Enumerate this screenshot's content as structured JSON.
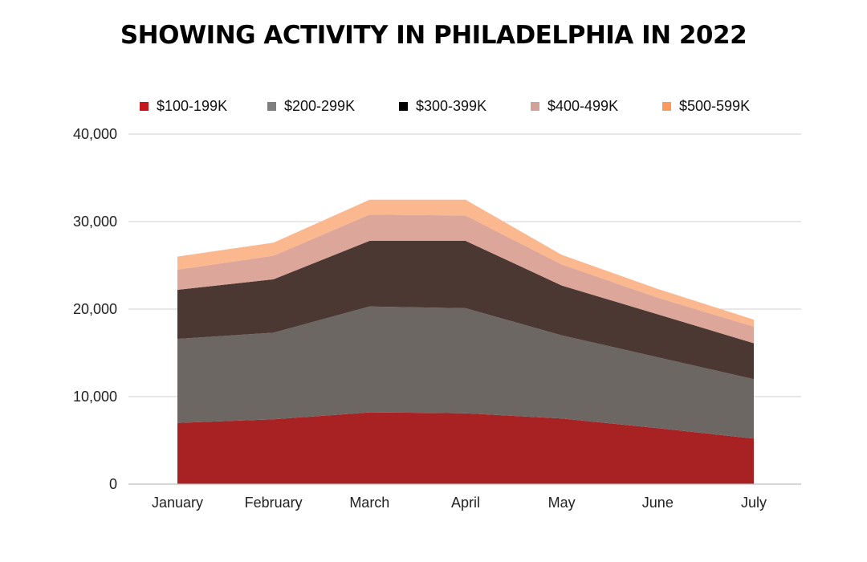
{
  "chart_data": {
    "type": "area",
    "stacked": true,
    "title": "SHOWING ACTIVITY IN PHILADELPHIA IN 2022",
    "categories": [
      "January",
      "February",
      "March",
      "April",
      "May",
      "June",
      "July"
    ],
    "y_ticks": [
      "0",
      "10,000",
      "20,000",
      "30,000",
      "40,000"
    ],
    "ylim": [
      0,
      40000
    ],
    "grid": true,
    "legend_position": "top",
    "series": [
      {
        "name": "$100-199K",
        "values": [
          7000,
          7400,
          8200,
          8100,
          7500,
          6400,
          5200
        ],
        "color": "#a82224",
        "swatch": "#c8161d"
      },
      {
        "name": "$200-299K",
        "values": [
          9600,
          9900,
          12100,
          12000,
          9500,
          8100,
          6800
        ],
        "color": "#6d6764",
        "swatch": "#7f7f7f"
      },
      {
        "name": "$300-399K",
        "values": [
          5600,
          6100,
          7500,
          7700,
          5700,
          4900,
          4100
        ],
        "color": "#4b3832",
        "swatch": "#000000"
      },
      {
        "name": "$400-499K",
        "values": [
          2300,
          2700,
          3000,
          2900,
          2400,
          1900,
          1900
        ],
        "color": "#dca69a",
        "swatch": "#d4a19a"
      },
      {
        "name": "$500-599K",
        "values": [
          1500,
          1500,
          1700,
          1800,
          1100,
          1000,
          800
        ],
        "color": "#fbb88f",
        "swatch": "#fb9a5a"
      }
    ]
  }
}
